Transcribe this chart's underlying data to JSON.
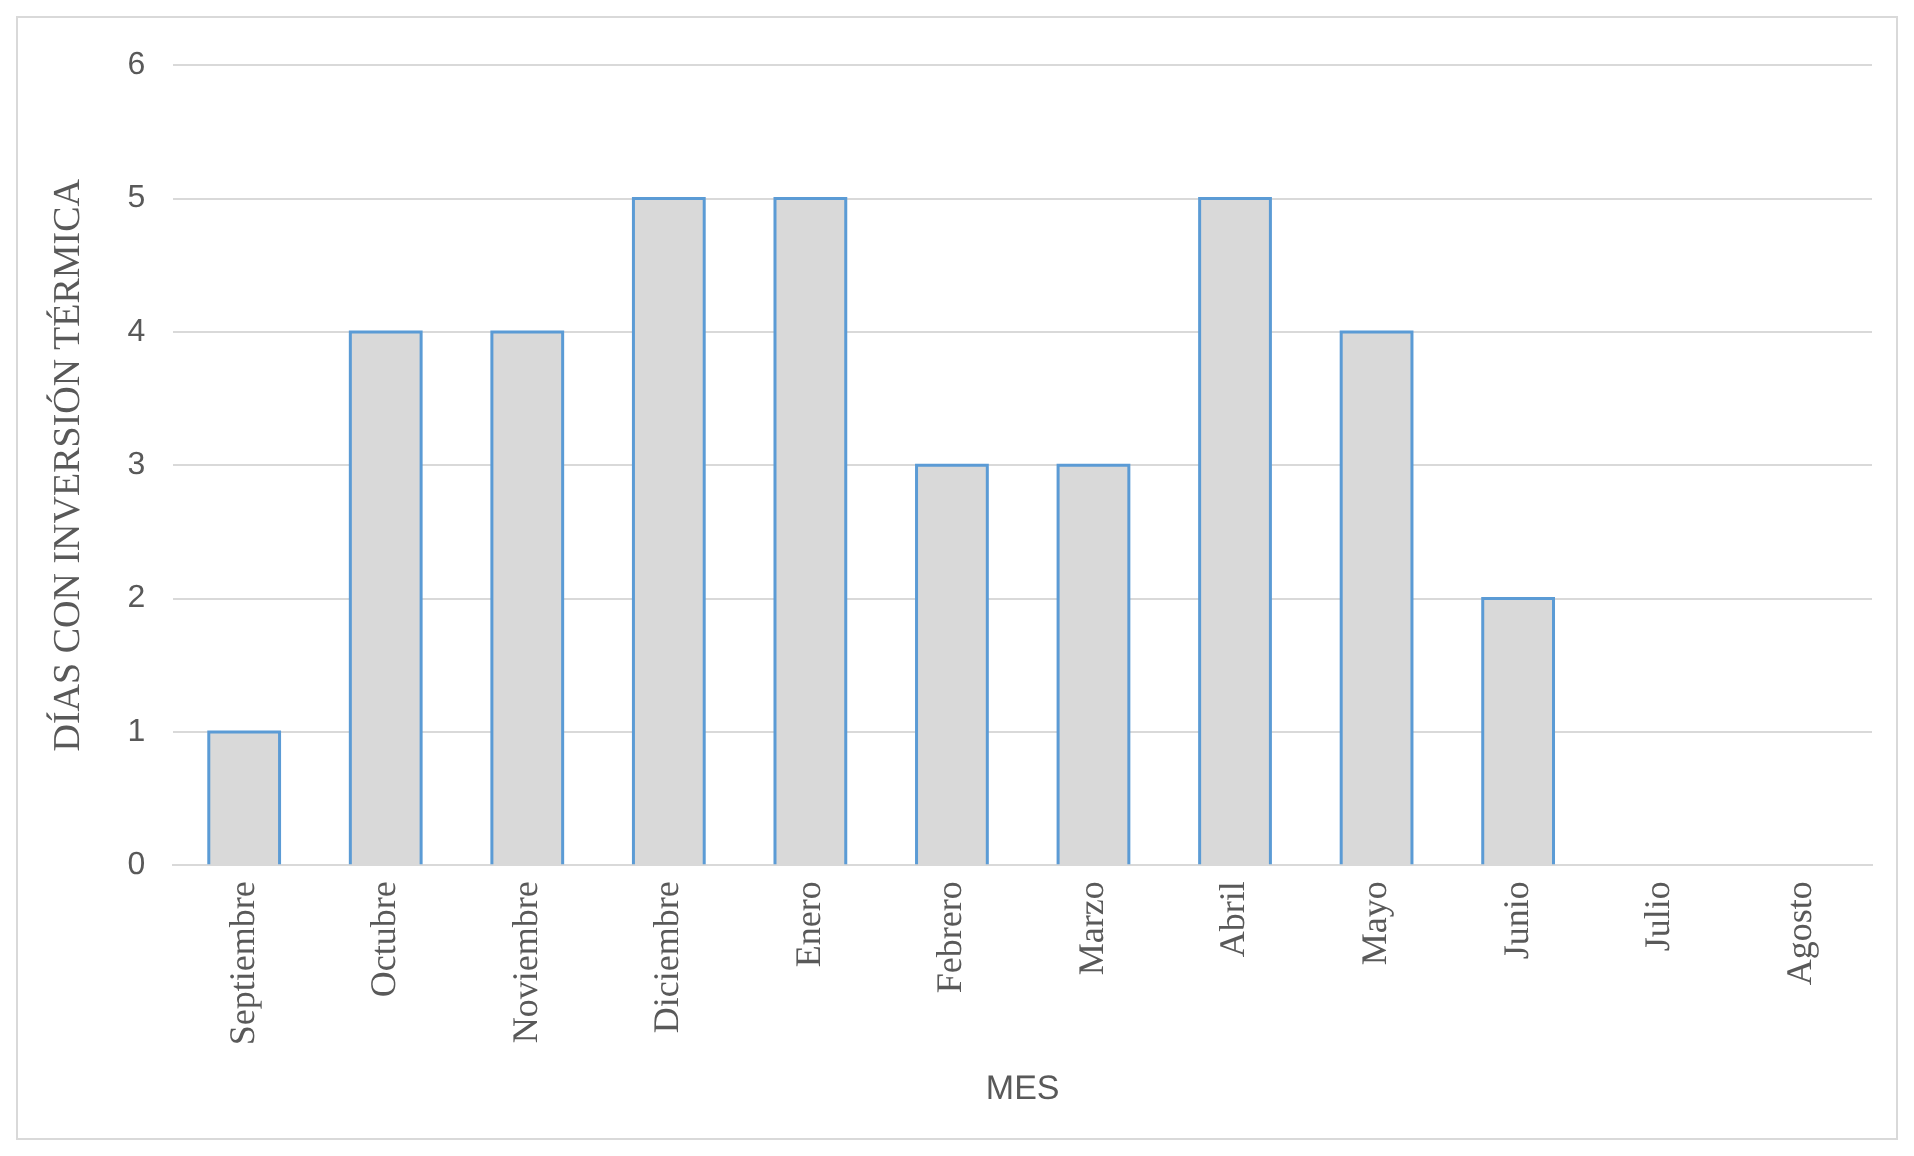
{
  "chart_data": {
    "type": "bar",
    "xlabel": "MES",
    "ylabel": "DÍAS CON INVERSIÓN TÉRMICA",
    "categories": [
      "Septiembre",
      "Octubre",
      "Noviembre",
      "Diciembre",
      "Enero",
      "Febrero",
      "Marzo",
      "Abril",
      "Mayo",
      "Junio",
      "Julio",
      "Agosto"
    ],
    "series": [
      {
        "color": "#d9d9d9",
        "values": [
          1,
          4,
          4,
          5,
          5,
          3,
          3,
          5,
          4,
          2,
          0,
          0
        ]
      }
    ],
    "ylim": [
      0,
      6
    ],
    "yticks": [
      0,
      1,
      2,
      3,
      4,
      5,
      6
    ],
    "grid": "y",
    "legend": false
  }
}
